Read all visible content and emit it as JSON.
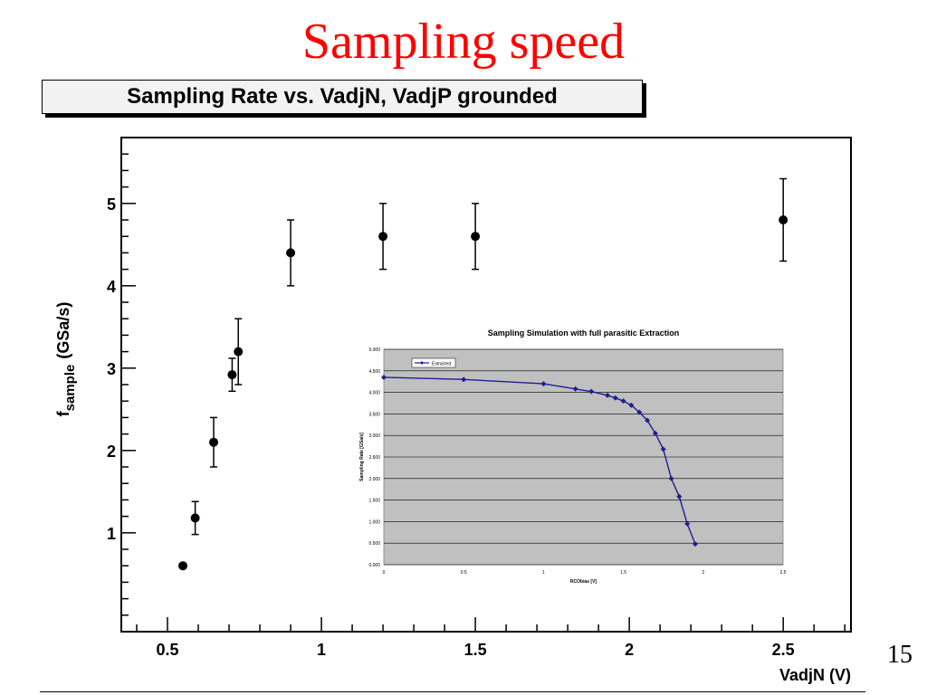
{
  "slide": {
    "title": "Sampling speed",
    "page_number": "15"
  },
  "colors": {
    "title_red": "#ff0000",
    "series_blue": "#1f1f8f",
    "inset_plot_bg": "#c0c0c0"
  },
  "chart_data": [
    {
      "type": "scatter",
      "title": "Sampling Rate vs. VadjN, VadjP grounded",
      "xlabel": "VadjN (V)",
      "ylabel": {
        "main": "f",
        "subscript": "sample",
        "unit": "(GSa/s)"
      },
      "xlim": [
        0.35,
        2.72
      ],
      "ylim": [
        -0.2,
        5.8
      ],
      "x_ticks": [
        0.5,
        1,
        1.5,
        2,
        2.5
      ],
      "x_tick_labels": [
        "0.5",
        "1",
        "1.5",
        "2",
        "2.5"
      ],
      "y_ticks": [
        1,
        2,
        3,
        4,
        5
      ],
      "y_tick_labels": [
        "1",
        "2",
        "3",
        "4",
        "5"
      ],
      "grid": false,
      "series": [
        {
          "x": [
            0.55,
            0.59,
            0.65,
            0.71,
            0.73,
            0.9,
            1.2,
            1.5,
            2.5
          ],
          "y": [
            0.6,
            1.18,
            2.1,
            2.92,
            3.2,
            4.4,
            4.6,
            4.6,
            4.8
          ],
          "err": [
            0,
            0.2,
            0.3,
            0.2,
            0.4,
            0.4,
            0.4,
            0.4,
            0.5
          ]
        }
      ]
    },
    {
      "type": "line",
      "title": "Sampling Simulation with full parasitic Extraction",
      "xlabel": "RCObias [V]",
      "ylabel": "Sampling Rate [GSa/s]",
      "xlim": [
        0,
        2.5
      ],
      "ylim": [
        0,
        5
      ],
      "x_ticks": [
        0,
        0.5,
        1,
        1.5,
        2,
        2.5
      ],
      "x_tick_labels": [
        "0",
        "0.5",
        "1",
        "1.5",
        "2",
        "2.5"
      ],
      "y_ticks": [
        0,
        0.5,
        1,
        1.5,
        2,
        2.5,
        3,
        3.5,
        4,
        4.5,
        5
      ],
      "y_tick_labels": [
        "0.000",
        "0.500",
        "1.000",
        "1.500",
        "2.000",
        "2.500",
        "3.000",
        "3.500",
        "4.000",
        "4.500",
        "5.000"
      ],
      "grid": true,
      "legend_position": "top-left",
      "series": [
        {
          "name": "Extracted",
          "x": [
            0,
            0.5,
            1,
            1.2,
            1.3,
            1.4,
            1.45,
            1.5,
            1.55,
            1.6,
            1.65,
            1.7,
            1.75,
            1.8,
            1.85,
            1.9,
            1.95
          ],
          "y": [
            4.35,
            4.3,
            4.2,
            4.08,
            4.02,
            3.93,
            3.87,
            3.8,
            3.7,
            3.54,
            3.35,
            3.05,
            2.68,
            2.0,
            1.58,
            0.95,
            0.48
          ]
        }
      ]
    }
  ]
}
